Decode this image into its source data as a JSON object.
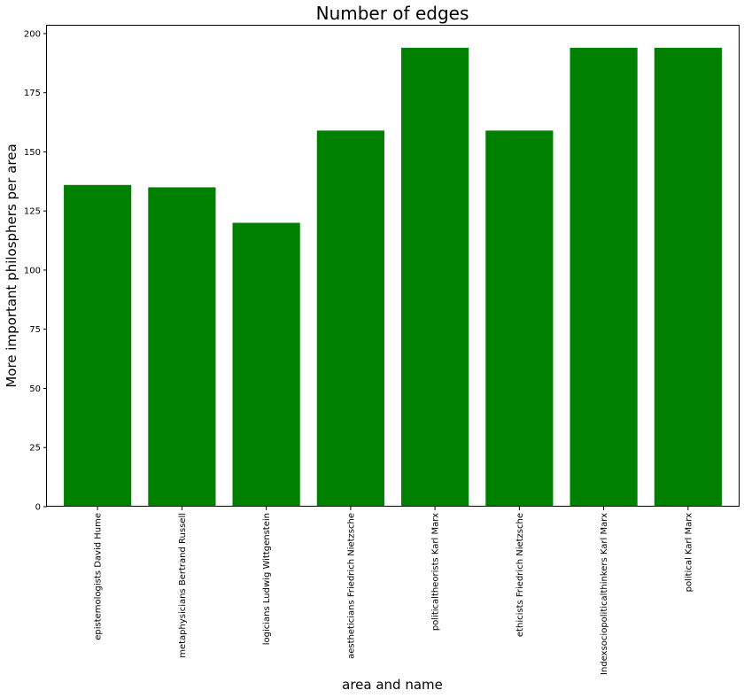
{
  "chart_data": {
    "type": "bar",
    "title": "Number of edges",
    "xlabel": "area and name",
    "ylabel": "More important philosphers per area",
    "categories": [
      "epistemologists David Hume",
      "metaphysicians Bertrand Russell",
      "logicians Ludwig Wittgenstein",
      "aestheticians Friedrich Nietzsche",
      "politicaltheorists Karl Marx",
      "ethicists Friedrich Nietzsche",
      "Indexsociopoliticalthinkers Karl Marx",
      "political Karl Marx"
    ],
    "values": [
      136,
      135,
      120,
      159,
      194,
      159,
      194,
      194
    ],
    "ylim": [
      0,
      203.7
    ],
    "yticks": [
      0,
      25,
      50,
      75,
      100,
      125,
      150,
      175,
      200
    ],
    "bar_color": "#008000",
    "grid": false,
    "legend": "none"
  }
}
